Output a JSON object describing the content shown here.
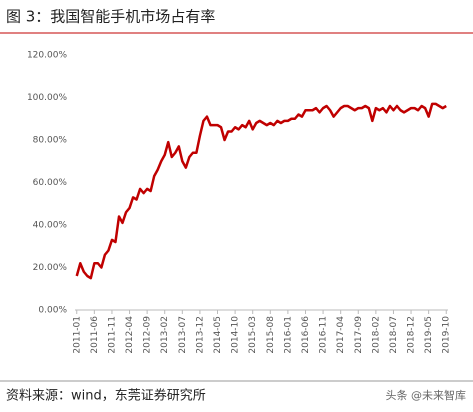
{
  "chart_data": {
    "type": "line",
    "title": "图 3：我国智能手机市场占有率",
    "source": "资料来源：wind，东莞证券研究所",
    "watermark": "头条 @未来智库",
    "categories": [
      "2011-01",
      null,
      null,
      null,
      null,
      "2011-06",
      null,
      null,
      null,
      null,
      "2011-11",
      null,
      null,
      null,
      null,
      "2012-04",
      null,
      null,
      null,
      null,
      "2012-09",
      null,
      null,
      null,
      null,
      "2013-02",
      null,
      null,
      null,
      null,
      "2013-07",
      null,
      null,
      null,
      null,
      "2013-12",
      null,
      null,
      null,
      null,
      "2014-05",
      null,
      null,
      null,
      null,
      "2014-10",
      null,
      null,
      null,
      null,
      "2015-03",
      null,
      null,
      null,
      null,
      "2015-08",
      null,
      null,
      null,
      null,
      "2016-01",
      null,
      null,
      null,
      null,
      "2016-06",
      null,
      null,
      null,
      null,
      "2016-11",
      null,
      null,
      null,
      null,
      "2017-04",
      null,
      null,
      null,
      null,
      "2017-09",
      null,
      null,
      null,
      null,
      "2018-02",
      null,
      null,
      null,
      null,
      "2018-07",
      null,
      null,
      null,
      null,
      "2018-12",
      null,
      null,
      null,
      null,
      "2019-05",
      null,
      null,
      null,
      null,
      "2019-10"
    ],
    "values": [
      16,
      22,
      18,
      16,
      15,
      22,
      22,
      20,
      26,
      28,
      33,
      32,
      44,
      41,
      46,
      48,
      53,
      52,
      57,
      55,
      57,
      56,
      63,
      66,
      70,
      73,
      79,
      72,
      74,
      77,
      70,
      67,
      72,
      74,
      74,
      82,
      89,
      91,
      87,
      87,
      87,
      86,
      80,
      84,
      84,
      86,
      85,
      87,
      86,
      89,
      85,
      88,
      89,
      88,
      87,
      88,
      87,
      89,
      88,
      89,
      89,
      90,
      90,
      92,
      91,
      94,
      94,
      94,
      95,
      93,
      95,
      96,
      94,
      91,
      93,
      95,
      96,
      96,
      95,
      94,
      95,
      95,
      96,
      95,
      89,
      95,
      94,
      95,
      93,
      96,
      94,
      96,
      94,
      93,
      94,
      95,
      95,
      94,
      96,
      95,
      91,
      97,
      97,
      96,
      95,
      96
    ],
    "color": "#c00000",
    "ylim": [
      0,
      120
    ],
    "yticks": [
      {
        "value": 0,
        "label": "0.00%"
      },
      {
        "value": 20,
        "label": "20.00%"
      },
      {
        "value": 40,
        "label": "40.00%"
      },
      {
        "value": 60,
        "label": "60.00%"
      },
      {
        "value": 80,
        "label": "80.00%"
      },
      {
        "value": 100,
        "label": "100.00%"
      },
      {
        "value": 120,
        "label": "120.00%"
      }
    ],
    "grid": false
  }
}
